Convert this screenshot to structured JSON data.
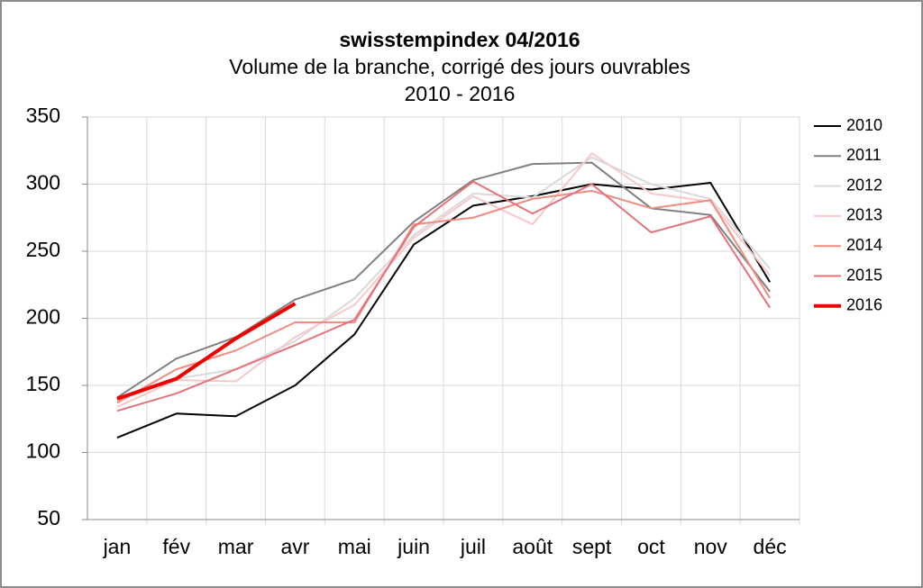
{
  "chart_data": {
    "type": "line",
    "title": "swisstempindex 04/2016",
    "subtitle": "Volume de la branche, corrigé des jours ouvrables",
    "subtitle2": "2010 - 2016",
    "categories": [
      "jan",
      "fév",
      "mar",
      "avr",
      "mai",
      "juin",
      "juil",
      "août",
      "sept",
      "oct",
      "nov",
      "déc"
    ],
    "series": [
      {
        "name": "2010",
        "color": "#000000",
        "width": 2,
        "values": [
          111,
          129,
          127,
          150,
          188,
          255,
          284,
          291,
          300,
          296,
          301,
          227
        ]
      },
      {
        "name": "2011",
        "color": "#808080",
        "width": 2,
        "values": [
          141,
          170,
          186,
          214,
          229,
          272,
          303,
          315,
          316,
          282,
          277,
          220
        ]
      },
      {
        "name": "2012",
        "color": "#d9d9d9",
        "width": 2,
        "values": [
          138,
          155,
          162,
          183,
          215,
          262,
          293,
          290,
          320,
          300,
          289,
          237
        ]
      },
      {
        "name": "2013",
        "color": "#f8c8c8",
        "width": 2,
        "values": [
          134,
          154,
          153,
          186,
          210,
          260,
          291,
          270,
          323,
          293,
          287,
          232
        ]
      },
      {
        "name": "2014",
        "color": "#f08c80",
        "width": 2,
        "values": [
          137,
          162,
          176,
          197,
          197,
          270,
          275,
          289,
          295,
          282,
          288,
          215
        ]
      },
      {
        "name": "2015",
        "color": "#e8707a",
        "width": 2,
        "values": [
          131,
          144,
          162,
          180,
          199,
          268,
          302,
          278,
          300,
          264,
          276,
          208
        ]
      },
      {
        "name": "2016",
        "color": "#ee0000",
        "width": 4,
        "values": [
          140,
          155,
          185,
          211,
          null,
          null,
          null,
          null,
          null,
          null,
          null,
          null
        ]
      }
    ],
    "ylim": [
      50,
      350
    ],
    "yticks": [
      50,
      100,
      150,
      200,
      250,
      300,
      350
    ],
    "grid": true,
    "legend": "right"
  }
}
